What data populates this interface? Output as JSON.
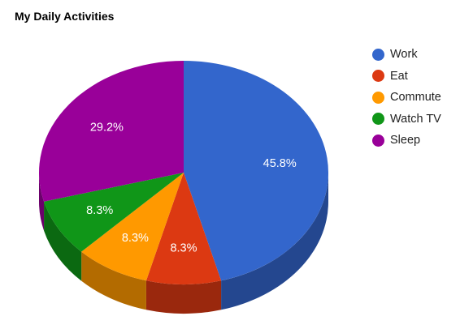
{
  "chart_data": {
    "type": "pie",
    "title": "My Daily Activities",
    "is3D": true,
    "slices": [
      {
        "label": "Work",
        "value": 11,
        "percent_label": "45.8%",
        "color": "#3366cc"
      },
      {
        "label": "Eat",
        "value": 2,
        "percent_label": "8.3%",
        "color": "#dc3912"
      },
      {
        "label": "Commute",
        "value": 2,
        "percent_label": "8.3%",
        "color": "#ff9900"
      },
      {
        "label": "Watch TV",
        "value": 2,
        "percent_label": "8.3%",
        "color": "#109618"
      },
      {
        "label": "Sleep",
        "value": 7,
        "percent_label": "29.2%",
        "color": "#990099"
      }
    ],
    "legend_position": "right"
  }
}
